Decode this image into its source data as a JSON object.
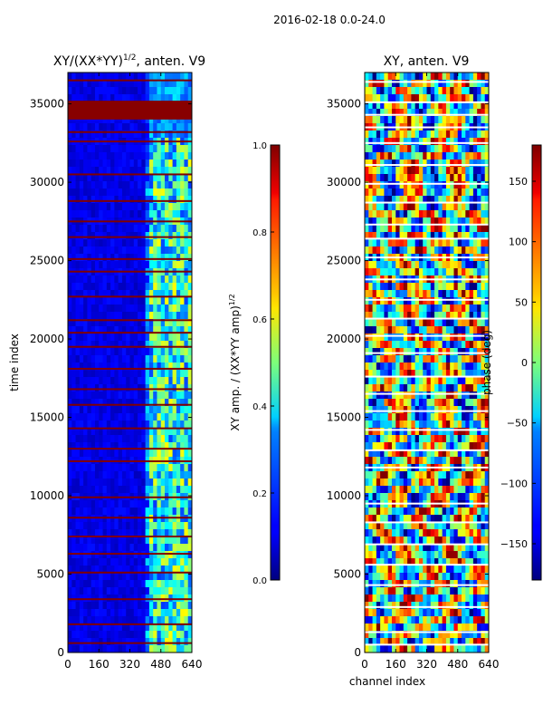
{
  "suptitle": "2016-02-18 0.0-24.0",
  "chart_data": [
    {
      "type": "heatmap",
      "title": "XY/(XX*YY)",
      "title_exponent": "1/2",
      "title_suffix": ", anten. V9",
      "xlabel": "",
      "ylabel": "time index",
      "xlim": [
        0,
        640
      ],
      "ylim": [
        0,
        37000
      ],
      "xticks": [
        0,
        160,
        320,
        480,
        640
      ],
      "yticks": [
        0,
        5000,
        10000,
        15000,
        20000,
        25000,
        30000,
        35000
      ],
      "colormap": "jet",
      "colorbar": {
        "label": "XY amp. / (XX*YY amp)",
        "label_exponent": "1/2",
        "range": [
          0.0,
          1.0
        ],
        "ticks": [
          "0.0",
          "0.2",
          "0.4",
          "0.6",
          "0.8",
          "1.0"
        ]
      },
      "flagged_rows_approx": [
        36500,
        34800,
        34200,
        33200,
        32600,
        30500,
        28800,
        27500,
        26500,
        25100,
        24300,
        22700,
        21200,
        20400,
        19500,
        18100,
        16800,
        15800,
        14300,
        13000,
        12200,
        9900,
        8600,
        7400,
        6300,
        5100,
        3400,
        1800,
        600
      ],
      "bright_band_channels_approx": [
        400,
        640
      ]
    },
    {
      "type": "heatmap",
      "title": "XY, anten. V9",
      "xlabel": "channel index",
      "ylabel": "",
      "xlim": [
        0,
        640
      ],
      "ylim": [
        0,
        37000
      ],
      "xticks": [
        0,
        160,
        320,
        480,
        640
      ],
      "yticks": [
        0,
        5000,
        10000,
        15000,
        20000,
        25000,
        30000,
        35000
      ],
      "colormap": "jet",
      "colorbar": {
        "label": "phase (deg)",
        "range": [
          -180,
          180
        ],
        "ticks": [
          "150",
          "100",
          "50",
          "0",
          "−50",
          "−100",
          "−150"
        ],
        "tick_values": [
          150,
          100,
          50,
          0,
          -50,
          -100,
          -150
        ]
      },
      "flagged_rows_approx": [
        36400,
        35100,
        34300,
        33500,
        32500,
        31100,
        29900,
        28700,
        27300,
        26400,
        25200,
        23800,
        22500,
        21300,
        20200,
        19100,
        17600,
        16500,
        15400,
        14200,
        12900,
        11800,
        9500,
        8300,
        6900,
        5600,
        4300,
        2900,
        1300,
        500
      ]
    }
  ]
}
